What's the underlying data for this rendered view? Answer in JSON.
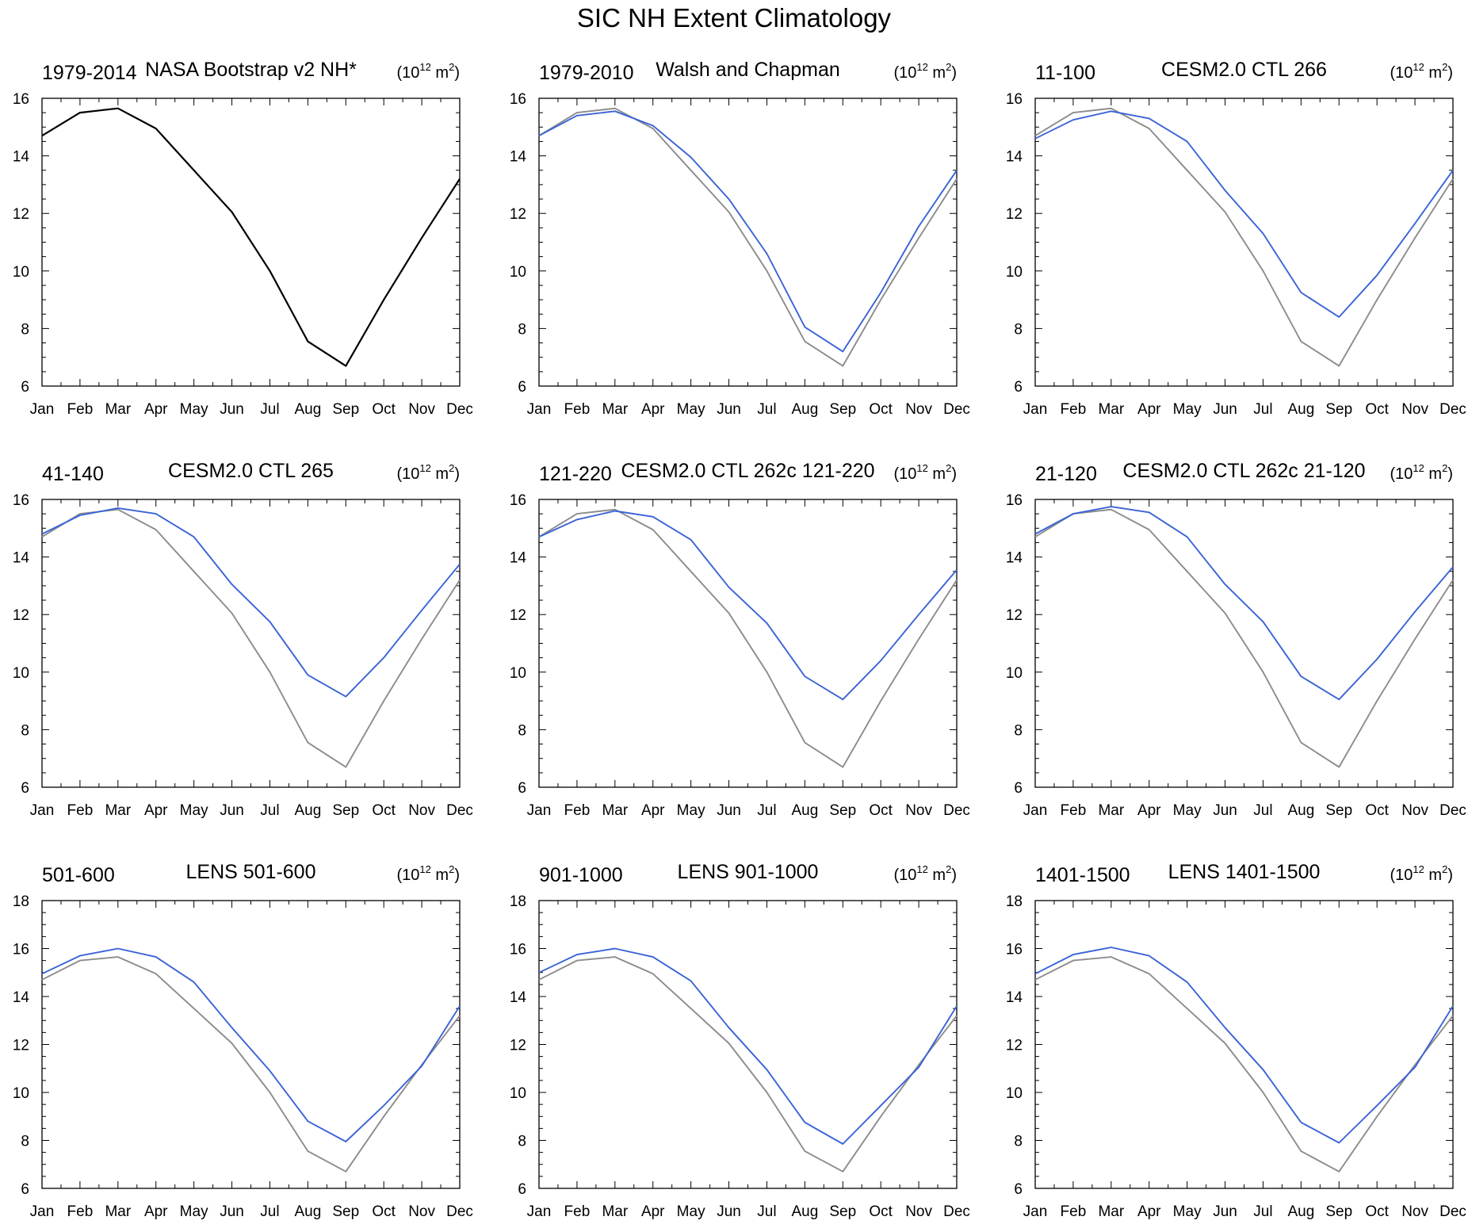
{
  "figure": {
    "title": "SIC NH Extent Climatology"
  },
  "style": {
    "obs_color": "#000000",
    "ref_color": "#8c8c8c",
    "model_color": "#3a63d6"
  },
  "chart_data": [
    {
      "type": "line",
      "left_label": "1979-2014",
      "title": "NASA Bootstrap v2 NH*",
      "units_base": "(10",
      "units_exp": "12",
      "units_tail": " m",
      "units_exp2": "2",
      "units_close": ")",
      "categories": [
        "Jan",
        "Feb",
        "Mar",
        "Apr",
        "May",
        "Jun",
        "Jul",
        "Aug",
        "Sep",
        "Oct",
        "Nov",
        "Dec"
      ],
      "ylim": [
        6,
        16
      ],
      "yticks": [
        "6",
        "8",
        "10",
        "12",
        "14",
        "16"
      ],
      "series": [
        {
          "role": "obs",
          "values": [
            14.7,
            15.5,
            15.65,
            14.95,
            13.5,
            12.05,
            10.0,
            7.55,
            6.7,
            9.0,
            11.15,
            13.2
          ]
        }
      ]
    },
    {
      "type": "line",
      "left_label": "1979-2010",
      "title": "Walsh and Chapman",
      "units_base": "(10",
      "units_exp": "12",
      "units_tail": " m",
      "units_exp2": "2",
      "units_close": ")",
      "categories": [
        "Jan",
        "Feb",
        "Mar",
        "Apr",
        "May",
        "Jun",
        "Jul",
        "Aug",
        "Sep",
        "Oct",
        "Nov",
        "Dec"
      ],
      "ylim": [
        6,
        16
      ],
      "yticks": [
        "6",
        "8",
        "10",
        "12",
        "14",
        "16"
      ],
      "series": [
        {
          "role": "ref",
          "values": [
            14.7,
            15.5,
            15.65,
            14.95,
            13.5,
            12.05,
            10.0,
            7.55,
            6.7,
            9.0,
            11.15,
            13.2
          ]
        },
        {
          "role": "model",
          "values": [
            14.7,
            15.4,
            15.55,
            15.05,
            13.95,
            12.5,
            10.6,
            8.05,
            7.2,
            9.25,
            11.55,
            13.5
          ]
        }
      ]
    },
    {
      "type": "line",
      "left_label": "11-100",
      "title": "CESM2.0 CTL 266",
      "units_base": "(10",
      "units_exp": "12",
      "units_tail": " m",
      "units_exp2": "2",
      "units_close": ")",
      "categories": [
        "Jan",
        "Feb",
        "Mar",
        "Apr",
        "May",
        "Jun",
        "Jul",
        "Aug",
        "Sep",
        "Oct",
        "Nov",
        "Dec"
      ],
      "ylim": [
        6,
        16
      ],
      "yticks": [
        "6",
        "8",
        "10",
        "12",
        "14",
        "16"
      ],
      "series": [
        {
          "role": "ref",
          "values": [
            14.7,
            15.5,
            15.65,
            14.95,
            13.5,
            12.05,
            10.0,
            7.55,
            6.7,
            9.0,
            11.15,
            13.2
          ]
        },
        {
          "role": "model",
          "values": [
            14.6,
            15.25,
            15.55,
            15.3,
            14.5,
            12.8,
            11.3,
            9.25,
            8.4,
            9.85,
            11.65,
            13.5
          ]
        }
      ]
    },
    {
      "type": "line",
      "left_label": "41-140",
      "title": "CESM2.0 CTL 265",
      "units_base": "(10",
      "units_exp": "12",
      "units_tail": " m",
      "units_exp2": "2",
      "units_close": ")",
      "categories": [
        "Jan",
        "Feb",
        "Mar",
        "Apr",
        "May",
        "Jun",
        "Jul",
        "Aug",
        "Sep",
        "Oct",
        "Nov",
        "Dec"
      ],
      "ylim": [
        6,
        16
      ],
      "yticks": [
        "6",
        "8",
        "10",
        "12",
        "14",
        "16"
      ],
      "series": [
        {
          "role": "ref",
          "values": [
            14.7,
            15.5,
            15.65,
            14.95,
            13.5,
            12.05,
            10.0,
            7.55,
            6.7,
            9.0,
            11.15,
            13.2
          ]
        },
        {
          "role": "model",
          "values": [
            14.8,
            15.45,
            15.7,
            15.5,
            14.7,
            13.05,
            11.75,
            9.9,
            9.15,
            10.5,
            12.15,
            13.75
          ]
        }
      ]
    },
    {
      "type": "line",
      "left_label": "121-220",
      "title": "CESM2.0 CTL 262c 121-220",
      "units_base": "(10",
      "units_exp": "12",
      "units_tail": " m",
      "units_exp2": "2",
      "units_close": ")",
      "categories": [
        "Jan",
        "Feb",
        "Mar",
        "Apr",
        "May",
        "Jun",
        "Jul",
        "Aug",
        "Sep",
        "Oct",
        "Nov",
        "Dec"
      ],
      "ylim": [
        6,
        16
      ],
      "yticks": [
        "6",
        "8",
        "10",
        "12",
        "14",
        "16"
      ],
      "series": [
        {
          "role": "ref",
          "values": [
            14.7,
            15.5,
            15.65,
            14.95,
            13.5,
            12.05,
            10.0,
            7.55,
            6.7,
            9.0,
            11.15,
            13.2
          ]
        },
        {
          "role": "model",
          "values": [
            14.7,
            15.3,
            15.6,
            15.4,
            14.6,
            12.95,
            11.7,
            9.85,
            9.05,
            10.4,
            12.0,
            13.55
          ]
        }
      ]
    },
    {
      "type": "line",
      "left_label": "21-120",
      "title": "CESM2.0 CTL 262c 21-120",
      "units_base": "(10",
      "units_exp": "12",
      "units_tail": " m",
      "units_exp2": "2",
      "units_close": ")",
      "categories": [
        "Jan",
        "Feb",
        "Mar",
        "Apr",
        "May",
        "Jun",
        "Jul",
        "Aug",
        "Sep",
        "Oct",
        "Nov",
        "Dec"
      ],
      "ylim": [
        6,
        16
      ],
      "yticks": [
        "6",
        "8",
        "10",
        "12",
        "14",
        "16"
      ],
      "series": [
        {
          "role": "ref",
          "values": [
            14.7,
            15.5,
            15.65,
            14.95,
            13.5,
            12.05,
            10.0,
            7.55,
            6.7,
            9.0,
            11.15,
            13.2
          ]
        },
        {
          "role": "model",
          "values": [
            14.8,
            15.5,
            15.75,
            15.55,
            14.7,
            13.05,
            11.75,
            9.85,
            9.05,
            10.45,
            12.1,
            13.65
          ]
        }
      ]
    },
    {
      "type": "line",
      "left_label": "501-600",
      "title": "LENS 501-600",
      "units_base": "(10",
      "units_exp": "12",
      "units_tail": " m",
      "units_exp2": "2",
      "units_close": ")",
      "categories": [
        "Jan",
        "Feb",
        "Mar",
        "Apr",
        "May",
        "Jun",
        "Jul",
        "Aug",
        "Sep",
        "Oct",
        "Nov",
        "Dec"
      ],
      "ylim": [
        6,
        18
      ],
      "yticks": [
        "6",
        "8",
        "10",
        "12",
        "14",
        "16",
        "18"
      ],
      "series": [
        {
          "role": "ref",
          "values": [
            14.7,
            15.5,
            15.65,
            14.95,
            13.5,
            12.05,
            10.0,
            7.55,
            6.7,
            9.0,
            11.15,
            13.2
          ]
        },
        {
          "role": "model",
          "values": [
            14.95,
            15.7,
            16.0,
            15.65,
            14.6,
            12.7,
            10.9,
            8.8,
            7.95,
            9.45,
            11.1,
            13.6
          ]
        }
      ]
    },
    {
      "type": "line",
      "left_label": "901-1000",
      "title": "LENS 901-1000",
      "units_base": "(10",
      "units_exp": "12",
      "units_tail": " m",
      "units_exp2": "2",
      "units_close": ")",
      "categories": [
        "Jan",
        "Feb",
        "Mar",
        "Apr",
        "May",
        "Jun",
        "Jul",
        "Aug",
        "Sep",
        "Oct",
        "Nov",
        "Dec"
      ],
      "ylim": [
        6,
        18
      ],
      "yticks": [
        "6",
        "8",
        "10",
        "12",
        "14",
        "16",
        "18"
      ],
      "series": [
        {
          "role": "ref",
          "values": [
            14.7,
            15.5,
            15.65,
            14.95,
            13.5,
            12.05,
            10.0,
            7.55,
            6.7,
            9.0,
            11.15,
            13.2
          ]
        },
        {
          "role": "model",
          "values": [
            15.0,
            15.75,
            16.0,
            15.65,
            14.65,
            12.7,
            10.95,
            8.75,
            7.85,
            9.45,
            11.05,
            13.6
          ]
        }
      ]
    },
    {
      "type": "line",
      "left_label": "1401-1500",
      "title": "LENS 1401-1500",
      "units_base": "(10",
      "units_exp": "12",
      "units_tail": " m",
      "units_exp2": "2",
      "units_close": ")",
      "categories": [
        "Jan",
        "Feb",
        "Mar",
        "Apr",
        "May",
        "Jun",
        "Jul",
        "Aug",
        "Sep",
        "Oct",
        "Nov",
        "Dec"
      ],
      "ylim": [
        6,
        18
      ],
      "yticks": [
        "6",
        "8",
        "10",
        "12",
        "14",
        "16",
        "18"
      ],
      "series": [
        {
          "role": "ref",
          "values": [
            14.7,
            15.5,
            15.65,
            14.95,
            13.5,
            12.05,
            10.0,
            7.55,
            6.7,
            9.0,
            11.15,
            13.2
          ]
        },
        {
          "role": "model",
          "values": [
            14.95,
            15.75,
            16.05,
            15.7,
            14.6,
            12.7,
            10.95,
            8.75,
            7.9,
            9.45,
            11.05,
            13.6
          ]
        }
      ]
    }
  ]
}
